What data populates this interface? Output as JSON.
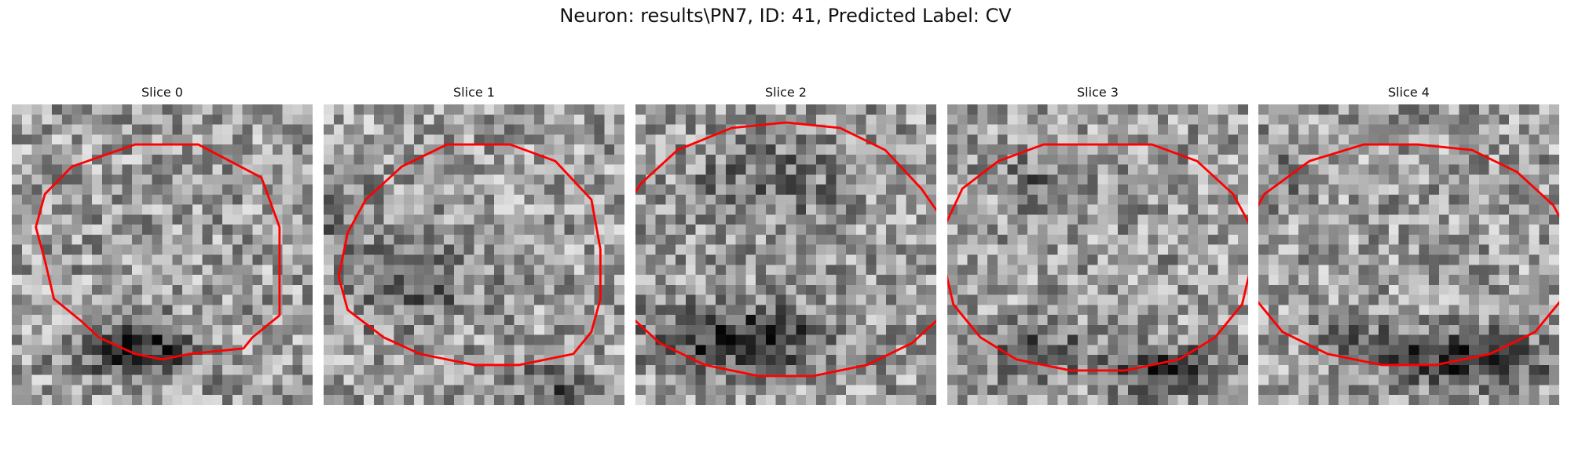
{
  "figure": {
    "title": "Neuron: results\\PN7, ID: 41, Predicted Label: CV"
  },
  "colors": {
    "contour": "#ff0000",
    "background": "#ffffff",
    "colormap": "gray"
  },
  "panels": [
    {
      "title": "Slice 0",
      "contour": [
        [
          13,
          52
        ],
        [
          13,
          59
        ],
        [
          10,
          63
        ],
        [
          9,
          65
        ],
        [
          3,
          66
        ],
        [
          0,
          67
        ],
        [
          -3,
          66
        ],
        [
          -7,
          63
        ],
        [
          -9,
          60
        ],
        [
          -12,
          56
        ],
        [
          -13,
          49
        ],
        [
          -14,
          43
        ],
        [
          -13,
          37
        ],
        [
          -10,
          32
        ],
        [
          -3,
          28
        ],
        [
          4,
          28
        ],
        [
          11,
          34
        ],
        [
          13,
          43
        ]
      ],
      "dark_zones": [
        [
          0.42,
          0.82,
          0.16,
          0.09,
          0.95
        ]
      ]
    },
    {
      "title": "Slice 1",
      "contour": [
        [
          14,
          47
        ],
        [
          14,
          56
        ],
        [
          13,
          62
        ],
        [
          11,
          66
        ],
        [
          5,
          68
        ],
        [
          0,
          68
        ],
        [
          -6,
          66
        ],
        [
          -10,
          63
        ],
        [
          -14,
          58
        ],
        [
          -15,
          52
        ],
        [
          -14,
          44
        ],
        [
          -12,
          38
        ],
        [
          -8,
          32
        ],
        [
          -3,
          28
        ],
        [
          4,
          28
        ],
        [
          9,
          31
        ],
        [
          13,
          38
        ]
      ],
      "dark_zones": [
        [
          0.3,
          0.6,
          0.2,
          0.16,
          0.4
        ],
        [
          0.75,
          0.95,
          0.12,
          0.08,
          0.5
        ],
        [
          0.05,
          0.35,
          0.08,
          0.12,
          0.35
        ]
      ]
    },
    {
      "title": "Slice 2",
      "contour": [
        [
          20,
          50
        ],
        [
          18,
          58
        ],
        [
          14,
          64
        ],
        [
          9,
          68
        ],
        [
          3,
          70
        ],
        [
          -3,
          70
        ],
        [
          -9,
          68
        ],
        [
          -14,
          64
        ],
        [
          -18,
          58
        ],
        [
          -20,
          50
        ],
        [
          -19,
          42
        ],
        [
          -16,
          35
        ],
        [
          -12,
          29
        ],
        [
          -6,
          25
        ],
        [
          0,
          24
        ],
        [
          6,
          25
        ],
        [
          11,
          29
        ],
        [
          15,
          36
        ],
        [
          18,
          43
        ]
      ],
      "dark_zones": [
        [
          0.35,
          0.78,
          0.28,
          0.1,
          0.85
        ],
        [
          0.45,
          0.25,
          0.25,
          0.15,
          0.35
        ]
      ]
    },
    {
      "title": "Slice 3",
      "contour": [
        [
          17,
          50
        ],
        [
          16,
          57
        ],
        [
          13,
          63
        ],
        [
          9,
          67
        ],
        [
          3,
          69
        ],
        [
          -3,
          69
        ],
        [
          -9,
          67
        ],
        [
          -13,
          63
        ],
        [
          -16,
          57
        ],
        [
          -17,
          50
        ],
        [
          -17,
          43
        ],
        [
          -15,
          36
        ],
        [
          -11,
          31
        ],
        [
          -6,
          28
        ],
        [
          0,
          28
        ],
        [
          6,
          28
        ],
        [
          11,
          31
        ],
        [
          15,
          37
        ],
        [
          17,
          43
        ]
      ],
      "dark_zones": [
        [
          0.72,
          0.88,
          0.18,
          0.08,
          0.7
        ],
        [
          0.3,
          0.82,
          0.16,
          0.08,
          0.55
        ],
        [
          0.3,
          0.25,
          0.12,
          0.08,
          0.35
        ]
      ]
    },
    {
      "title": "Slice 4",
      "contour": [
        [
          19,
          50
        ],
        [
          17,
          56
        ],
        [
          14,
          62
        ],
        [
          9,
          66
        ],
        [
          3,
          68
        ],
        [
          -3,
          68
        ],
        [
          -9,
          66
        ],
        [
          -14,
          62
        ],
        [
          -17,
          56
        ],
        [
          -19,
          50
        ],
        [
          -18,
          43
        ],
        [
          -16,
          37
        ],
        [
          -11,
          31
        ],
        [
          -5,
          28
        ],
        [
          1,
          28
        ],
        [
          7,
          29
        ],
        [
          12,
          33
        ],
        [
          16,
          39
        ],
        [
          18,
          45
        ]
      ],
      "dark_zones": [
        [
          0.7,
          0.85,
          0.25,
          0.09,
          0.8
        ],
        [
          0.35,
          0.8,
          0.18,
          0.08,
          0.4
        ],
        [
          0.1,
          0.2,
          0.1,
          0.15,
          0.15
        ]
      ]
    }
  ]
}
